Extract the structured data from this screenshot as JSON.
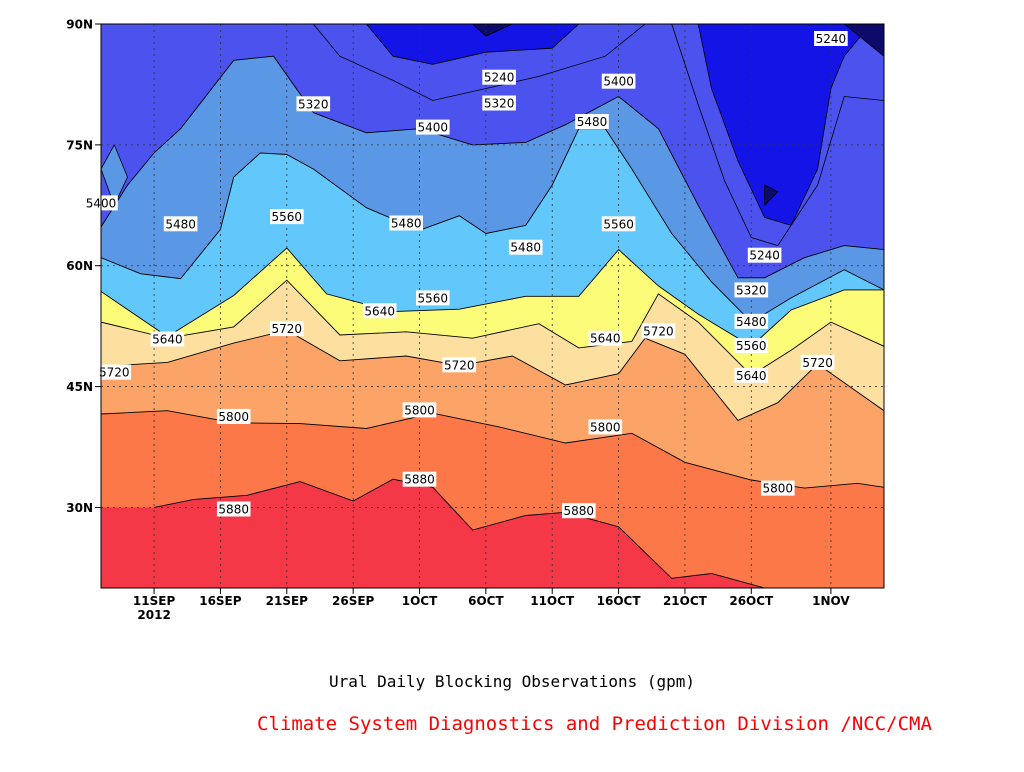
{
  "figure": {
    "caption": "Ural Daily Blocking Observations (gpm)",
    "credit": "Climate System Diagnostics and Prediction Division /NCC/CMA",
    "credit_color": "#ff0000"
  },
  "chart_data": {
    "type": "contour",
    "xlabel": "",
    "ylabel": "",
    "x_range": [
      "2012-09-07",
      "2012-11-05"
    ],
    "ylim": [
      20,
      90
    ],
    "x_ticks": [
      {
        "date": "2012-09-11",
        "label": "11SEP",
        "sublabel": "2012"
      },
      {
        "date": "2012-09-16",
        "label": "16SEP"
      },
      {
        "date": "2012-09-21",
        "label": "21SEP"
      },
      {
        "date": "2012-09-26",
        "label": "26SEP"
      },
      {
        "date": "2012-10-01",
        "label": "1OCT"
      },
      {
        "date": "2012-10-06",
        "label": "6OCT"
      },
      {
        "date": "2012-10-11",
        "label": "11OCT"
      },
      {
        "date": "2012-10-16",
        "label": "16OCT"
      },
      {
        "date": "2012-10-21",
        "label": "21OCT"
      },
      {
        "date": "2012-10-26",
        "label": "26OCT"
      },
      {
        "date": "2012-11-01",
        "label": "1NOV"
      }
    ],
    "y_ticks": [
      {
        "value": 30,
        "label": "30N"
      },
      {
        "value": 45,
        "label": "45N"
      },
      {
        "value": 60,
        "label": "60N"
      },
      {
        "value": 75,
        "label": "75N"
      },
      {
        "value": 90,
        "label": "90N"
      }
    ],
    "grid": true,
    "levels": [
      5240,
      5320,
      5400,
      5480,
      5560,
      5640,
      5720,
      5800,
      5880
    ],
    "colors": [
      "#0c0a6a",
      "#1414e6",
      "#4b52ee",
      "#5a98e6",
      "#62c8fc",
      "#fcfc78",
      "#fde0a0",
      "#fca468",
      "#fc7848",
      "#f4707c",
      "#f43848"
    ],
    "line_color": "#000000",
    "contours": [
      {
        "level": 5880,
        "points": [
          [
            "2012-09-11",
            30.0
          ],
          [
            "2012-09-14",
            31.0
          ],
          [
            "2012-09-18",
            31.5
          ],
          [
            "2012-09-22",
            33.2
          ],
          [
            "2012-09-26",
            30.8
          ],
          [
            "2012-09-29",
            33.5
          ],
          [
            "2012-10-02",
            32.5
          ],
          [
            "2012-10-05",
            27.2
          ],
          [
            "2012-10-09",
            29.0
          ],
          [
            "2012-10-12",
            29.4
          ],
          [
            "2012-10-16",
            27.6
          ],
          [
            "2012-10-20",
            21.2
          ],
          [
            "2012-10-23",
            21.8
          ],
          [
            "2012-10-27",
            20.0
          ]
        ]
      },
      {
        "level": 5800,
        "points": [
          [
            "2012-09-07",
            41.6
          ],
          [
            "2012-09-12",
            42.0
          ],
          [
            "2012-09-17",
            40.5
          ],
          [
            "2012-09-22",
            40.4
          ],
          [
            "2012-09-27",
            39.8
          ],
          [
            "2012-10-02",
            41.7
          ],
          [
            "2012-10-07",
            40.0
          ],
          [
            "2012-10-12",
            38.0
          ],
          [
            "2012-10-17",
            39.2
          ],
          [
            "2012-10-21",
            35.6
          ],
          [
            "2012-10-26",
            33.4
          ],
          [
            "2012-10-30",
            32.4
          ],
          [
            "2012-11-03",
            33.0
          ],
          [
            "2012-11-05",
            32.5
          ]
        ]
      },
      {
        "level": 5720,
        "points": [
          [
            "2012-09-07",
            47.5
          ],
          [
            "2012-09-12",
            48.0
          ],
          [
            "2012-09-17",
            50.4
          ],
          [
            "2012-09-21",
            52.0
          ],
          [
            "2012-09-25",
            48.2
          ],
          [
            "2012-09-30",
            48.8
          ],
          [
            "2012-10-04",
            47.6
          ],
          [
            "2012-10-08",
            48.8
          ],
          [
            "2012-10-12",
            45.2
          ],
          [
            "2012-10-16",
            46.6
          ],
          [
            "2012-10-18",
            51.0
          ],
          [
            "2012-10-21",
            49.0
          ],
          [
            "2012-10-25",
            40.8
          ],
          [
            "2012-10-28",
            43.0
          ],
          [
            "2012-10-31",
            47.8
          ],
          [
            "2012-11-05",
            42.0
          ]
        ]
      },
      {
        "level": 5640,
        "points": [
          [
            "2012-09-07",
            53.0
          ],
          [
            "2012-09-12",
            51.0
          ],
          [
            "2012-09-17",
            52.4
          ],
          [
            "2012-09-21",
            58.2
          ],
          [
            "2012-09-25",
            51.4
          ],
          [
            "2012-09-30",
            51.8
          ],
          [
            "2012-10-05",
            51.0
          ],
          [
            "2012-10-10",
            52.8
          ],
          [
            "2012-10-13",
            49.8
          ],
          [
            "2012-10-17",
            50.6
          ],
          [
            "2012-10-19",
            56.5
          ],
          [
            "2012-10-22",
            53.0
          ],
          [
            "2012-10-26",
            46.4
          ],
          [
            "2012-10-29",
            49.5
          ],
          [
            "2012-11-01",
            53.0
          ],
          [
            "2012-11-05",
            50.0
          ]
        ]
      },
      {
        "level": 5560,
        "points": [
          [
            "2012-09-07",
            56.8
          ],
          [
            "2012-09-12",
            51.2
          ],
          [
            "2012-09-17",
            56.3
          ],
          [
            "2012-09-21",
            62.2
          ],
          [
            "2012-09-24",
            56.5
          ],
          [
            "2012-09-29",
            54.3
          ],
          [
            "2012-10-04",
            54.6
          ],
          [
            "2012-10-09",
            56.2
          ],
          [
            "2012-10-13",
            56.2
          ],
          [
            "2012-10-16",
            62.0
          ],
          [
            "2012-10-19",
            57.5
          ],
          [
            "2012-10-22",
            54.0
          ],
          [
            "2012-10-26",
            50.0
          ],
          [
            "2012-10-29",
            54.5
          ],
          [
            "2012-11-02",
            57.0
          ],
          [
            "2012-11-05",
            57.0
          ]
        ]
      },
      {
        "level": 5480,
        "points": [
          [
            "2012-09-07",
            61.0
          ],
          [
            "2012-09-10",
            59.0
          ],
          [
            "2012-09-13",
            58.4
          ],
          [
            "2012-09-16",
            64.5
          ],
          [
            "2012-09-17",
            71.0
          ],
          [
            "2012-09-19",
            74.0
          ],
          [
            "2012-09-21",
            73.8
          ],
          [
            "2012-09-23",
            72.0
          ],
          [
            "2012-09-27",
            67.2
          ],
          [
            "2012-10-01",
            64.4
          ],
          [
            "2012-10-04",
            66.2
          ],
          [
            "2012-10-06",
            64.0
          ],
          [
            "2012-10-09",
            65.0
          ],
          [
            "2012-10-11",
            70.0
          ],
          [
            "2012-10-13",
            77.0
          ],
          [
            "2012-10-15",
            77.0
          ],
          [
            "2012-10-17",
            72.0
          ],
          [
            "2012-10-20",
            64.0
          ],
          [
            "2012-10-23",
            58.0
          ],
          [
            "2012-10-26",
            53.0
          ],
          [
            "2012-10-29",
            56.0
          ],
          [
            "2012-11-02",
            59.5
          ],
          [
            "2012-11-05",
            57.0
          ]
        ]
      },
      {
        "level": 5400,
        "points": [
          [
            "2012-09-07",
            64.8
          ],
          [
            "2012-09-09",
            70.0
          ],
          [
            "2012-09-11",
            74.0
          ],
          [
            "2012-09-13",
            77.0
          ],
          [
            "2012-09-17",
            85.5
          ],
          [
            "2012-09-20",
            86.0
          ],
          [
            "2012-09-23",
            79.0
          ],
          [
            "2012-09-27",
            76.5
          ],
          [
            "2012-10-01",
            77.0
          ],
          [
            "2012-10-05",
            75.0
          ],
          [
            "2012-10-09",
            75.3
          ],
          [
            "2012-10-12",
            77.5
          ],
          [
            "2012-10-16",
            81.0
          ],
          [
            "2012-10-19",
            77.0
          ],
          [
            "2012-10-22",
            67.5
          ],
          [
            "2012-10-25",
            58.5
          ],
          [
            "2012-10-27",
            58.5
          ],
          [
            "2012-10-30",
            61.0
          ],
          [
            "2012-11-02",
            62.5
          ],
          [
            "2012-11-05",
            62.0
          ]
        ]
      }
    ],
    "contour_labels": [
      {
        "level": 5880,
        "x": "2012-09-17",
        "y": 29.8
      },
      {
        "level": 5880,
        "x": "2012-10-01",
        "y": 33.5
      },
      {
        "level": 5880,
        "x": "2012-10-13",
        "y": 29.6
      },
      {
        "level": 5800,
        "x": "2012-09-17",
        "y": 41.3
      },
      {
        "level": 5800,
        "x": "2012-10-01",
        "y": 42.1
      },
      {
        "level": 5800,
        "x": "2012-10-15",
        "y": 40.0
      },
      {
        "level": 5800,
        "x": "2012-10-28",
        "y": 32.4
      },
      {
        "level": 5720,
        "x": "2012-09-08",
        "y": 46.8
      },
      {
        "level": 5720,
        "x": "2012-09-21",
        "y": 52.2
      },
      {
        "level": 5720,
        "x": "2012-10-04",
        "y": 47.7
      },
      {
        "level": 5720,
        "x": "2012-10-19",
        "y": 51.9
      },
      {
        "level": 5720,
        "x": "2012-10-31",
        "y": 48.0
      },
      {
        "level": 5640,
        "x": "2012-09-12",
        "y": 50.9
      },
      {
        "level": 5640,
        "x": "2012-09-28",
        "y": 54.4
      },
      {
        "level": 5640,
        "x": "2012-10-15",
        "y": 51.0
      },
      {
        "level": 5640,
        "x": "2012-10-26",
        "y": 46.4
      },
      {
        "level": 5560,
        "x": "2012-10-02",
        "y": 56.0
      },
      {
        "level": 5560,
        "x": "2012-10-16",
        "y": 65.2
      },
      {
        "level": 5560,
        "x": "2012-09-21",
        "y": 66.1
      },
      {
        "level": 5560,
        "x": "2012-10-26",
        "y": 50.1
      },
      {
        "level": 5480,
        "x": "2012-09-13",
        "y": 65.2
      },
      {
        "level": 5480,
        "x": "2012-09-30",
        "y": 65.3
      },
      {
        "level": 5480,
        "x": "2012-10-09",
        "y": 62.3
      },
      {
        "level": 5480,
        "x": "2012-10-14",
        "y": 77.9
      },
      {
        "level": 5480,
        "x": "2012-10-26",
        "y": 53.1
      },
      {
        "level": 5400,
        "x": "2012-09-07",
        "y": 67.8
      },
      {
        "level": 5400,
        "x": "2012-10-02",
        "y": 77.2
      },
      {
        "level": 5400,
        "x": "2012-10-16",
        "y": 82.9
      },
      {
        "level": 5320,
        "x": "2012-09-23",
        "y": 80.1
      },
      {
        "level": 5320,
        "x": "2012-10-07",
        "y": 80.2
      },
      {
        "level": 5320,
        "x": "2012-10-26",
        "y": 57.0
      },
      {
        "level": 5240,
        "x": "2012-10-07",
        "y": 83.4
      },
      {
        "level": 5240,
        "x": "2012-10-27",
        "y": 61.3
      },
      {
        "level": 5240,
        "x": "2012-11-01",
        "y": 88.2
      }
    ],
    "upper_regions": [
      {
        "color": "#5a98e6",
        "points": [
          [
            "2012-09-07",
            72.0
          ],
          [
            "2012-09-08",
            75.0
          ],
          [
            "2012-09-09",
            71.0
          ],
          [
            "2012-09-08",
            67.5
          ]
        ]
      },
      {
        "color": "#4b52ee",
        "points": [
          [
            "2012-09-23",
            90.0
          ],
          [
            "2012-09-25",
            86.0
          ],
          [
            "2012-09-29",
            83.0
          ],
          [
            "2012-10-02",
            80.5
          ],
          [
            "2012-10-06",
            82.0
          ],
          [
            "2012-10-10",
            83.5
          ],
          [
            "2012-10-15",
            86.0
          ],
          [
            "2012-10-18",
            90.0
          ]
        ]
      },
      {
        "color": "#1414e6",
        "points": [
          [
            "2012-09-27",
            90.0
          ],
          [
            "2012-09-29",
            86.0
          ],
          [
            "2012-10-02",
            85.0
          ],
          [
            "2012-10-06",
            86.5
          ],
          [
            "2012-10-11",
            87.0
          ],
          [
            "2012-10-13",
            90.0
          ]
        ]
      },
      {
        "color": "#4b52ee",
        "points": [
          [
            "2012-10-20",
            90.0
          ],
          [
            "2012-10-22",
            80.0
          ],
          [
            "2012-10-24",
            70.5
          ],
          [
            "2012-10-26",
            63.5
          ],
          [
            "2012-10-28",
            62.5
          ],
          [
            "2012-10-31",
            70.0
          ],
          [
            "2012-11-02",
            81.0
          ],
          [
            "2012-11-05",
            80.5
          ],
          [
            "2012-11-05",
            90.0
          ]
        ]
      },
      {
        "color": "#1414e6",
        "points": [
          [
            "2012-10-22",
            90.0
          ],
          [
            "2012-10-23",
            82.0
          ],
          [
            "2012-10-25",
            73.0
          ],
          [
            "2012-10-27",
            66.0
          ],
          [
            "2012-10-29",
            65.0
          ],
          [
            "2012-10-31",
            72.0
          ],
          [
            "2012-11-01",
            82.0
          ],
          [
            "2012-11-02",
            86.0
          ],
          [
            "2012-11-04",
            90.0
          ]
        ]
      },
      {
        "color": "#0c0a6a",
        "points": [
          [
            "2012-11-02",
            90.0
          ],
          [
            "2012-11-05",
            86.0
          ],
          [
            "2012-11-05",
            90.0
          ]
        ]
      },
      {
        "color": "#0c0a6a",
        "points": [
          [
            "2012-10-27",
            70.0
          ],
          [
            "2012-10-28",
            69.2
          ],
          [
            "2012-10-27",
            67.5
          ]
        ]
      },
      {
        "color": "#0c0a6a",
        "points": [
          [
            "2012-10-05",
            90.0
          ],
          [
            "2012-10-06",
            88.5
          ],
          [
            "2012-10-08",
            90.0
          ]
        ]
      }
    ]
  }
}
